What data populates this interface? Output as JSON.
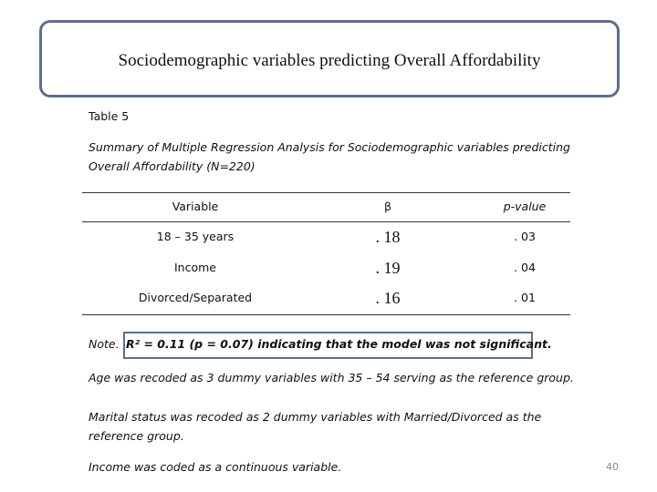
{
  "title": "Sociodemographic variables predicting Overall Affordability",
  "table_label": "Table 5",
  "caption": "Summary of Multiple Regression Analysis for Sociodemographic variables predicting Overall Affordability (N=220)",
  "table": {
    "header": [
      "Variable",
      "β",
      "p-value"
    ],
    "rows": [
      [
        "18 – 35 years",
        ". 18",
        ". 03"
      ],
      [
        "Income",
        ". 19",
        ". 04"
      ],
      [
        "Divorced/Separated",
        ". 16",
        ". 01"
      ]
    ]
  },
  "notes": {
    "prefix": "Note.",
    "model": "R² = 0.11 (p = 0.07) indicating that the model was not significant.",
    "lines": [
      "Age was recoded as 3 dummy variables with 35 – 54 serving as the reference group.",
      "Marital status was recoded as 2 dummy variables with Married/Divorced as the reference group.",
      "Income was coded as a continuous variable."
    ]
  },
  "page_number": "40"
}
